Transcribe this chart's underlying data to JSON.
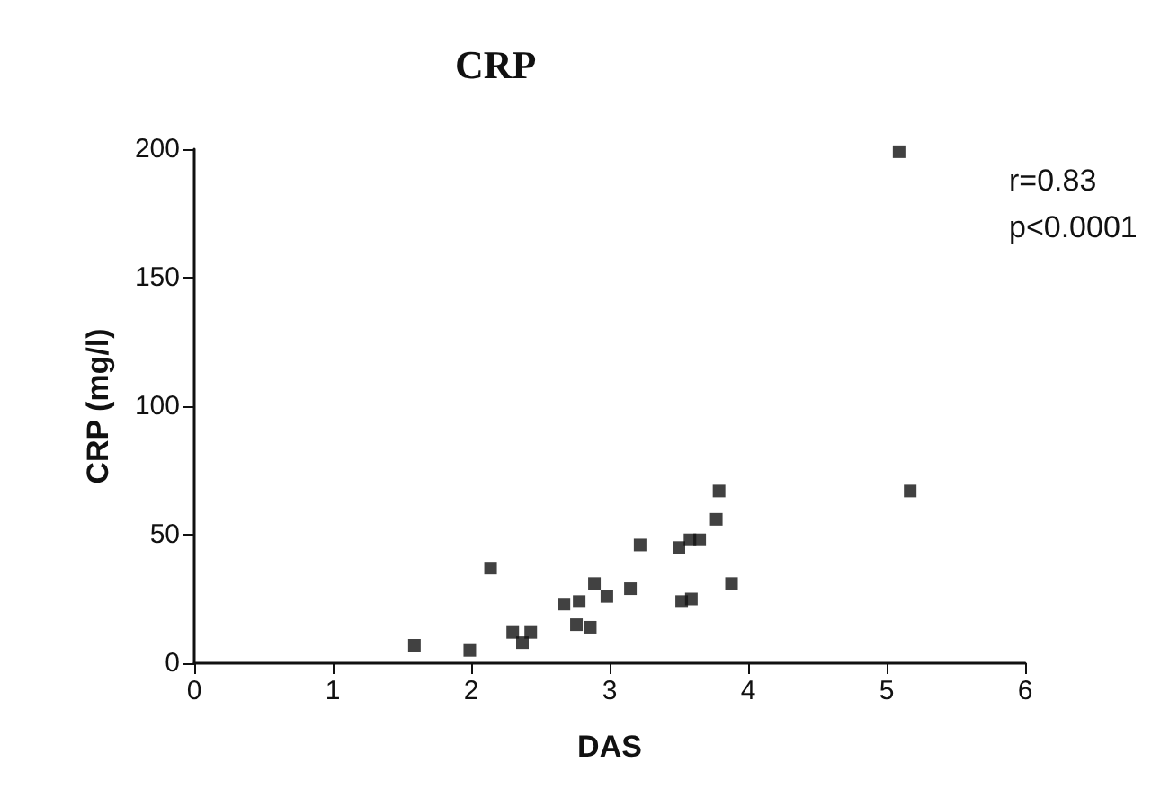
{
  "chart_data": {
    "type": "scatter",
    "title": "CRP",
    "xlabel": "DAS",
    "ylabel": "CRP (mg/l)",
    "annotations": [
      "r=0.83",
      "p<0.0001"
    ],
    "x": [
      1.59,
      1.99,
      2.14,
      2.3,
      2.37,
      2.43,
      2.67,
      2.76,
      2.78,
      2.86,
      2.89,
      2.98,
      3.15,
      3.22,
      3.5,
      3.52,
      3.59,
      3.58,
      3.65,
      3.77,
      3.79,
      3.88,
      5.09,
      5.17
    ],
    "series": [
      {
        "color": "#111111",
        "values": [
          7,
          5,
          37,
          12,
          8,
          12,
          23,
          15,
          24,
          14,
          31,
          26,
          29,
          46,
          45,
          24,
          25,
          48,
          48,
          56,
          67,
          31,
          199,
          67
        ]
      }
    ],
    "xlim": [
      0,
      6
    ],
    "xticks": [
      0,
      1,
      2,
      3,
      4,
      5,
      6
    ],
    "ylim": [
      0,
      200
    ],
    "yticks": [
      0,
      50,
      100,
      150,
      200
    ],
    "marker": "square",
    "grid": false
  }
}
